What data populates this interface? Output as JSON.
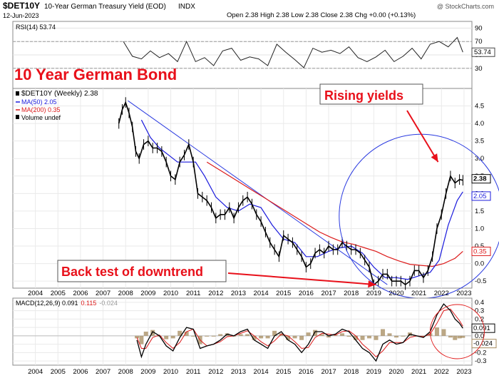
{
  "header": {
    "symbol": "$DET10Y",
    "name": "10-Year German Treasury Yield (EOD)",
    "exchange": "INDX",
    "date": "12-Jun-2023",
    "ohlc": "Open 2.38  High 2.38  Low 2.38  Close 2.38  Chg +0.00 (+0.13%)",
    "watermark": "@ StockCharts.com"
  },
  "annotations": {
    "title": "10 Year German Bond",
    "rising": "Rising yields",
    "backtest": "Back test of downtrend"
  },
  "colors": {
    "price": "#000000",
    "ma50": "#1a1adc",
    "ma200": "#dc1a1a",
    "annotation": "#e8101a",
    "circle_blue": "#2a3ae0",
    "circle_red": "#e01a1a"
  },
  "chart_data": [
    {
      "type": "line",
      "title": "RSI(14) 53.74",
      "ylim": [
        0,
        100
      ],
      "yticks": [
        30,
        50,
        70,
        90
      ],
      "levels": [
        30,
        70
      ],
      "last_value": "53.74",
      "series": [
        {
          "name": "RSI(14)",
          "x": [
            2008.4,
            2008.8,
            2009.2,
            2009.6,
            2010.0,
            2010.4,
            2010.8,
            2011.2,
            2011.6,
            2012.0,
            2012.4,
            2012.8,
            2013.2,
            2013.6,
            2014.0,
            2014.4,
            2014.8,
            2015.2,
            2015.6,
            2016.0,
            2016.4,
            2016.8,
            2017.2,
            2017.6,
            2018.0,
            2018.4,
            2018.8,
            2019.2,
            2019.6,
            2020.0,
            2020.4,
            2020.8,
            2021.2,
            2021.6,
            2022.0,
            2022.4,
            2022.8,
            2023.2,
            2023.45
          ],
          "values": [
            70,
            48,
            44,
            56,
            46,
            52,
            40,
            70,
            40,
            46,
            34,
            56,
            60,
            42,
            47,
            44,
            34,
            66,
            54,
            43,
            31,
            60,
            54,
            57,
            52,
            62,
            46,
            40,
            47,
            57,
            40,
            48,
            60,
            44,
            66,
            70,
            62,
            76,
            54
          ]
        }
      ]
    },
    {
      "type": "line",
      "title": "10 Year German Bond",
      "ylim": [
        -0.7,
        5.0
      ],
      "yticks": [
        -0.5,
        0.0,
        0.5,
        1.0,
        1.5,
        2.0,
        2.5,
        3.0,
        3.5,
        4.0,
        4.5
      ],
      "xticks": [
        "2004",
        "2005",
        "2006",
        "2007",
        "2008",
        "2009",
        "2010",
        "2011",
        "2012",
        "2013",
        "2014",
        "2015",
        "2016",
        "2017",
        "2018",
        "2019",
        "2020",
        "2021",
        "2022",
        "2023"
      ],
      "legend": [
        "$DET10Y (Weekly) 2.38",
        "MA(50) 2.05",
        "MA(200) 0.35",
        "Volume undef"
      ],
      "series": [
        {
          "name": "$DET10Y (Weekly)",
          "x": [
            2008.2,
            2008.35,
            2008.5,
            2008.65,
            2008.8,
            2008.95,
            2009.1,
            2009.3,
            2009.5,
            2009.7,
            2009.9,
            2010.1,
            2010.3,
            2010.5,
            2010.7,
            2010.9,
            2011.1,
            2011.3,
            2011.5,
            2011.7,
            2011.9,
            2012.1,
            2012.3,
            2012.5,
            2012.7,
            2012.9,
            2013.1,
            2013.3,
            2013.5,
            2013.7,
            2013.9,
            2014.1,
            2014.3,
            2014.5,
            2014.7,
            2014.9,
            2015.1,
            2015.3,
            2015.5,
            2015.7,
            2015.9,
            2016.1,
            2016.3,
            2016.5,
            2016.7,
            2016.9,
            2017.1,
            2017.3,
            2017.5,
            2017.7,
            2017.9,
            2018.1,
            2018.3,
            2018.5,
            2018.7,
            2018.9,
            2019.1,
            2019.3,
            2019.5,
            2019.7,
            2019.9,
            2020.1,
            2020.3,
            2020.5,
            2020.7,
            2020.9,
            2021.1,
            2021.3,
            2021.5,
            2021.7,
            2021.9,
            2022.1,
            2022.3,
            2022.5,
            2022.7,
            2022.9,
            2023.1,
            2023.3,
            2023.45
          ],
          "values": [
            4.0,
            4.4,
            4.6,
            4.3,
            3.9,
            3.2,
            3.0,
            3.4,
            3.5,
            3.3,
            3.3,
            3.2,
            2.9,
            2.5,
            2.4,
            2.9,
            3.1,
            3.4,
            2.9,
            2.0,
            1.9,
            1.8,
            1.6,
            1.3,
            1.4,
            1.4,
            1.6,
            1.3,
            1.6,
            1.8,
            1.9,
            1.7,
            1.4,
            1.2,
            0.9,
            0.6,
            0.4,
            0.2,
            0.8,
            0.7,
            0.6,
            0.4,
            0.2,
            -0.1,
            0.0,
            0.3,
            0.4,
            0.3,
            0.5,
            0.4,
            0.4,
            0.6,
            0.5,
            0.4,
            0.4,
            0.3,
            0.1,
            -0.1,
            -0.6,
            -0.5,
            -0.3,
            -0.3,
            -0.5,
            -0.5,
            -0.5,
            -0.6,
            -0.5,
            -0.2,
            -0.2,
            -0.4,
            -0.2,
            0.2,
            1.0,
            1.4,
            2.0,
            2.5,
            2.3,
            2.4,
            2.38
          ]
        },
        {
          "name": "MA(50)",
          "x": [
            2009.2,
            2009.6,
            2010.0,
            2010.4,
            2010.8,
            2011.2,
            2011.6,
            2012.0,
            2012.5,
            2013.0,
            2013.5,
            2014.0,
            2014.5,
            2015.0,
            2015.5,
            2016.0,
            2016.5,
            2017.0,
            2017.5,
            2018.0,
            2018.5,
            2019.0,
            2019.5,
            2020.0,
            2020.5,
            2021.0,
            2021.5,
            2022.0,
            2022.4,
            2022.8,
            2023.2,
            2023.45
          ],
          "values": [
            4.1,
            3.6,
            3.3,
            3.1,
            2.9,
            2.9,
            2.9,
            2.5,
            1.9,
            1.6,
            1.5,
            1.7,
            1.6,
            1.1,
            0.7,
            0.6,
            0.2,
            0.2,
            0.35,
            0.45,
            0.5,
            0.3,
            -0.1,
            -0.4,
            -0.4,
            -0.45,
            -0.35,
            -0.25,
            0.1,
            1.1,
            1.8,
            2.05
          ]
        },
        {
          "name": "MA(200)",
          "x": [
            2012.1,
            2012.6,
            2013.1,
            2013.6,
            2014.1,
            2014.6,
            2015.1,
            2015.6,
            2016.1,
            2016.6,
            2017.1,
            2017.6,
            2018.1,
            2018.6,
            2019.1,
            2019.6,
            2020.1,
            2020.6,
            2021.1,
            2021.6,
            2022.1,
            2022.6,
            2023.1,
            2023.45
          ],
          "values": [
            2.9,
            2.7,
            2.5,
            2.3,
            2.1,
            1.9,
            1.7,
            1.5,
            1.3,
            1.1,
            0.9,
            0.75,
            0.62,
            0.55,
            0.45,
            0.35,
            0.2,
            0.08,
            -0.02,
            -0.05,
            -0.08,
            0.0,
            0.15,
            0.35
          ]
        }
      ],
      "trendline": {
        "x": [
          2008.6,
          2020.1
        ],
        "values": [
          4.65,
          -0.6
        ]
      },
      "last_values": [
        "2.38",
        "2.05",
        "0.35"
      ]
    },
    {
      "type": "line",
      "title": "MACD(12,26,9) 0.091, 0.115, -0.024",
      "ylim": [
        -0.35,
        0.45
      ],
      "yticks": [
        -0.3,
        -0.2,
        -0.1,
        0.0,
        0.1,
        0.2,
        0.3,
        0.4
      ],
      "xticks": [
        "2004",
        "2005",
        "2006",
        "2007",
        "2008",
        "2009",
        "2010",
        "2011",
        "2012",
        "2013",
        "2014",
        "2015",
        "2016",
        "2017",
        "2018",
        "2019",
        "2020",
        "2021",
        "2022",
        "2023"
      ],
      "legend": [
        "MACD(12,26,9) 0.091",
        "0.115",
        "-0.024"
      ],
      "last_values": [
        "0.091",
        "-0.024"
      ],
      "series": [
        {
          "name": "MACD",
          "x": [
            2009.0,
            2009.2,
            2009.4,
            2009.7,
            2010.0,
            2010.3,
            2010.6,
            2010.9,
            2011.2,
            2011.5,
            2011.8,
            2012.1,
            2012.4,
            2012.7,
            2013.0,
            2013.3,
            2013.6,
            2013.9,
            2014.2,
            2014.5,
            2014.8,
            2015.1,
            2015.4,
            2015.7,
            2016.0,
            2016.3,
            2016.6,
            2016.9,
            2017.2,
            2017.5,
            2017.8,
            2018.1,
            2018.4,
            2018.7,
            2019.0,
            2019.3,
            2019.6,
            2019.9,
            2020.2,
            2020.5,
            2020.8,
            2021.1,
            2021.4,
            2021.7,
            2022.0,
            2022.3,
            2022.6,
            2022.9,
            2023.1,
            2023.3,
            2023.45
          ],
          "values": [
            -0.05,
            -0.25,
            -0.1,
            0.05,
            0.0,
            -0.12,
            -0.18,
            -0.02,
            0.1,
            0.08,
            -0.15,
            -0.12,
            -0.1,
            -0.05,
            0.02,
            0.0,
            0.05,
            0.08,
            -0.05,
            -0.1,
            -0.15,
            0.0,
            0.05,
            -0.05,
            -0.1,
            -0.2,
            -0.1,
            0.05,
            0.05,
            0.0,
            0.02,
            0.08,
            0.05,
            -0.05,
            -0.15,
            -0.2,
            -0.3,
            -0.1,
            -0.05,
            -0.1,
            -0.08,
            0.02,
            0.0,
            -0.02,
            0.05,
            0.25,
            0.38,
            0.3,
            0.2,
            0.15,
            0.091
          ]
        },
        {
          "name": "Signal",
          "x": [
            2009.0,
            2009.2,
            2009.4,
            2009.7,
            2010.0,
            2010.3,
            2010.6,
            2010.9,
            2011.2,
            2011.5,
            2011.8,
            2012.1,
            2012.4,
            2012.7,
            2013.0,
            2013.3,
            2013.6,
            2013.9,
            2014.2,
            2014.5,
            2014.8,
            2015.1,
            2015.4,
            2015.7,
            2016.0,
            2016.3,
            2016.6,
            2016.9,
            2017.2,
            2017.5,
            2017.8,
            2018.1,
            2018.4,
            2018.7,
            2019.0,
            2019.3,
            2019.6,
            2019.9,
            2020.2,
            2020.5,
            2020.8,
            2021.1,
            2021.4,
            2021.7,
            2022.0,
            2022.3,
            2022.6,
            2022.9,
            2023.1,
            2023.3,
            2023.45
          ],
          "values": [
            -0.02,
            -0.15,
            -0.15,
            -0.02,
            0.01,
            -0.08,
            -0.15,
            -0.08,
            0.05,
            0.08,
            -0.05,
            -0.12,
            -0.1,
            -0.07,
            -0.01,
            0.0,
            0.03,
            0.06,
            0.0,
            -0.07,
            -0.12,
            -0.06,
            0.02,
            0.0,
            -0.07,
            -0.15,
            -0.14,
            -0.02,
            0.03,
            0.02,
            0.01,
            0.05,
            0.06,
            0.0,
            -0.1,
            -0.17,
            -0.25,
            -0.18,
            -0.08,
            -0.08,
            -0.08,
            -0.02,
            0.0,
            -0.01,
            0.02,
            0.15,
            0.3,
            0.32,
            0.25,
            0.18,
            0.115
          ]
        }
      ]
    }
  ]
}
